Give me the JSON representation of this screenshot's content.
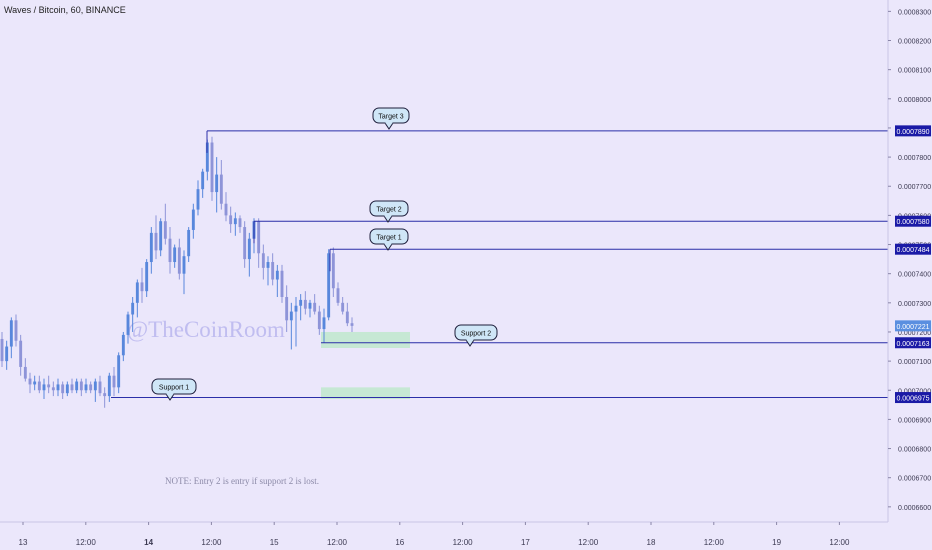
{
  "chart_title": "Waves / Bitcoin, 60, BINANCE",
  "watermark": "@TheCoinRoom",
  "note": "NOTE: Entry 2 is entry if support 2 is lost.",
  "chart_data": {
    "type": "candlestick",
    "y_ticks": [
      "0.0008300",
      "0.0008200",
      "0.0008100",
      "0.0008000",
      "0.0007900",
      "0.0007800",
      "0.0007700",
      "0.0007600",
      "0.0007500",
      "0.0007400",
      "0.0007300",
      "0.0007200",
      "0.0007100",
      "0.0007000",
      "0.0006900",
      "0.0006800",
      "0.0006700",
      "0.0006600"
    ],
    "ylim": [
      0.0006548,
      0.0008339
    ],
    "x_ticks": [
      "13",
      "12:00",
      "14",
      "12:00",
      "15",
      "12:00",
      "16",
      "12:00",
      "17",
      "12:00",
      "18",
      "12:00",
      "19",
      "12:00"
    ],
    "bold_x_ticks": [
      "14"
    ],
    "last_price": {
      "value": 0.0007221,
      "label": "0.0007221"
    },
    "levels": [
      {
        "name": "Target 3",
        "value": 0.000789,
        "label": "0.0007890"
      },
      {
        "name": "Target 2",
        "value": 0.000758,
        "label": "0.0007580"
      },
      {
        "name": "Target 1",
        "value": 0.0007484,
        "label": "0.0007484"
      },
      {
        "name": "Support 2",
        "value": 0.0007163,
        "label": "0.0007163"
      },
      {
        "name": "Support 1",
        "value": 0.0006975,
        "label": "0.0006975"
      }
    ],
    "zones": [
      {
        "from": 0.0007145,
        "to": 0.00072
      },
      {
        "from": 0.000697,
        "to": 0.000701
      }
    ],
    "candles": [
      [
        0.0007176,
        0.00072,
        0.000708,
        0.00071
      ],
      [
        0.00071,
        0.000717,
        0.000707,
        0.000715
      ],
      [
        0.000715,
        0.000725,
        0.000711,
        0.000724
      ],
      [
        0.000724,
        0.000726,
        0.000715,
        0.000717
      ],
      [
        0.000717,
        0.000719,
        0.000705,
        0.000708
      ],
      [
        0.000708,
        0.000711,
        0.000703,
        0.000704
      ],
      [
        0.000704,
        0.000706,
        0.000699,
        0.000702
      ],
      [
        0.000702,
        0.000705,
        0.0007,
        0.000703
      ],
      [
        0.000703,
        0.000705,
        0.000699,
        0.0007
      ],
      [
        0.0007,
        0.000704,
        0.000697,
        0.000702
      ],
      [
        0.000702,
        0.000705,
        0.000699,
        0.000701
      ],
      [
        0.000701,
        0.000703,
        0.000698,
        0.0007
      ],
      [
        0.0007,
        0.000704,
        0.000698,
        0.000702
      ],
      [
        0.000702,
        0.000703,
        0.000697,
        0.000699
      ],
      [
        0.000699,
        0.000703,
        0.000698,
        0.000702
      ],
      [
        0.000702,
        0.000704,
        0.000699,
        0.0007
      ],
      [
        0.0007,
        0.000704,
        0.000699,
        0.000703
      ],
      [
        0.000703,
        0.000704,
        0.000698,
        0.0007
      ],
      [
        0.0007,
        0.000704,
        0.000699,
        0.000702
      ],
      [
        0.000702,
        0.000703,
        0.000699,
        0.0007
      ],
      [
        0.0007,
        0.000704,
        0.000696,
        0.000703
      ],
      [
        0.000703,
        0.000705,
        0.000698,
        0.000699
      ],
      [
        0.000699,
        0.000701,
        0.000694,
        0.000698
      ],
      [
        0.000698,
        0.000706,
        0.000696,
        0.000705
      ],
      [
        0.000705,
        0.000708,
        0.000698,
        0.000701
      ],
      [
        0.000701,
        0.000713,
        0.000699,
        0.000712
      ],
      [
        0.000712,
        0.00072,
        0.00071,
        0.000719
      ],
      [
        0.000719,
        0.000727,
        0.000716,
        0.000726
      ],
      [
        0.000726,
        0.000732,
        0.00072,
        0.00073
      ],
      [
        0.00073,
        0.000738,
        0.000725,
        0.000737
      ],
      [
        0.000737,
        0.000742,
        0.00073,
        0.000734
      ],
      [
        0.000734,
        0.000745,
        0.000732,
        0.000744
      ],
      [
        0.000744,
        0.000756,
        0.00074,
        0.000754
      ],
      [
        0.000754,
        0.00076,
        0.000745,
        0.000748
      ],
      [
        0.000748,
        0.000759,
        0.000746,
        0.000758
      ],
      [
        0.000758,
        0.000764,
        0.00075,
        0.000752
      ],
      [
        0.000752,
        0.000756,
        0.00074,
        0.000744
      ],
      [
        0.000744,
        0.00075,
        0.000742,
        0.000749
      ],
      [
        0.000749,
        0.000752,
        0.000738,
        0.00074
      ],
      [
        0.00074,
        0.000748,
        0.000733,
        0.000746
      ],
      [
        0.000746,
        0.000756,
        0.000744,
        0.000755
      ],
      [
        0.000755,
        0.000764,
        0.000752,
        0.000762
      ],
      [
        0.000762,
        0.000772,
        0.00076,
        0.000769
      ],
      [
        0.000769,
        0.000776,
        0.000766,
        0.000775
      ],
      [
        0.000775,
        0.000786,
        0.000772,
        0.000785
      ],
      [
        0.000785,
        0.000787,
        0.000765,
        0.000768
      ],
      [
        0.000768,
        0.00078,
        0.000761,
        0.000774
      ],
      [
        0.000774,
        0.000779,
        0.000762,
        0.000764
      ],
      [
        0.000764,
        0.000768,
        0.000758,
        0.00076
      ],
      [
        0.00076,
        0.000763,
        0.000754,
        0.000757
      ],
      [
        0.000757,
        0.000761,
        0.000753,
        0.000759
      ],
      [
        0.000759,
        0.00076,
        0.000754,
        0.000756
      ],
      [
        0.000756,
        0.000758,
        0.000742,
        0.000745
      ],
      [
        0.000745,
        0.000754,
        0.000739,
        0.000752
      ],
      [
        0.000752,
        0.000759,
        0.000747,
        0.000758
      ],
      [
        0.000758,
        0.000759,
        0.000742,
        0.000747
      ],
      [
        0.000747,
        0.00075,
        0.000738,
        0.000742
      ],
      [
        0.000742,
        0.000746,
        0.000736,
        0.000744
      ],
      [
        0.000744,
        0.000747,
        0.000736,
        0.000738
      ],
      [
        0.000738,
        0.000743,
        0.000732,
        0.000741
      ],
      [
        0.000741,
        0.000743,
        0.00073,
        0.000732
      ],
      [
        0.000732,
        0.000736,
        0.00072,
        0.000724
      ],
      [
        0.000724,
        0.00073,
        0.000714,
        0.000727
      ],
      [
        0.000727,
        0.000732,
        0.000715,
        0.000729
      ],
      [
        0.000729,
        0.000733,
        0.000724,
        0.000731
      ],
      [
        0.000731,
        0.000734,
        0.000726,
        0.000728
      ],
      [
        0.000728,
        0.000731,
        0.000725,
        0.00073
      ],
      [
        0.00073,
        0.000733,
        0.000726,
        0.000727
      ],
      [
        0.000727,
        0.000729,
        0.000719,
        0.000721
      ],
      [
        0.000721,
        0.000728,
        0.0007163,
        0.000725
      ],
      [
        0.000725,
        0.0007484,
        0.000724,
        0.000747
      ],
      [
        0.000747,
        0.000749,
        0.000732,
        0.000735
      ],
      [
        0.000735,
        0.000737,
        0.000729,
        0.00073
      ],
      [
        0.00073,
        0.000732,
        0.000726,
        0.000727
      ],
      [
        0.000727,
        0.00073,
        0.000722,
        0.000723
      ],
      [
        0.000723,
        0.000725,
        0.00072,
        0.0007221
      ]
    ]
  }
}
